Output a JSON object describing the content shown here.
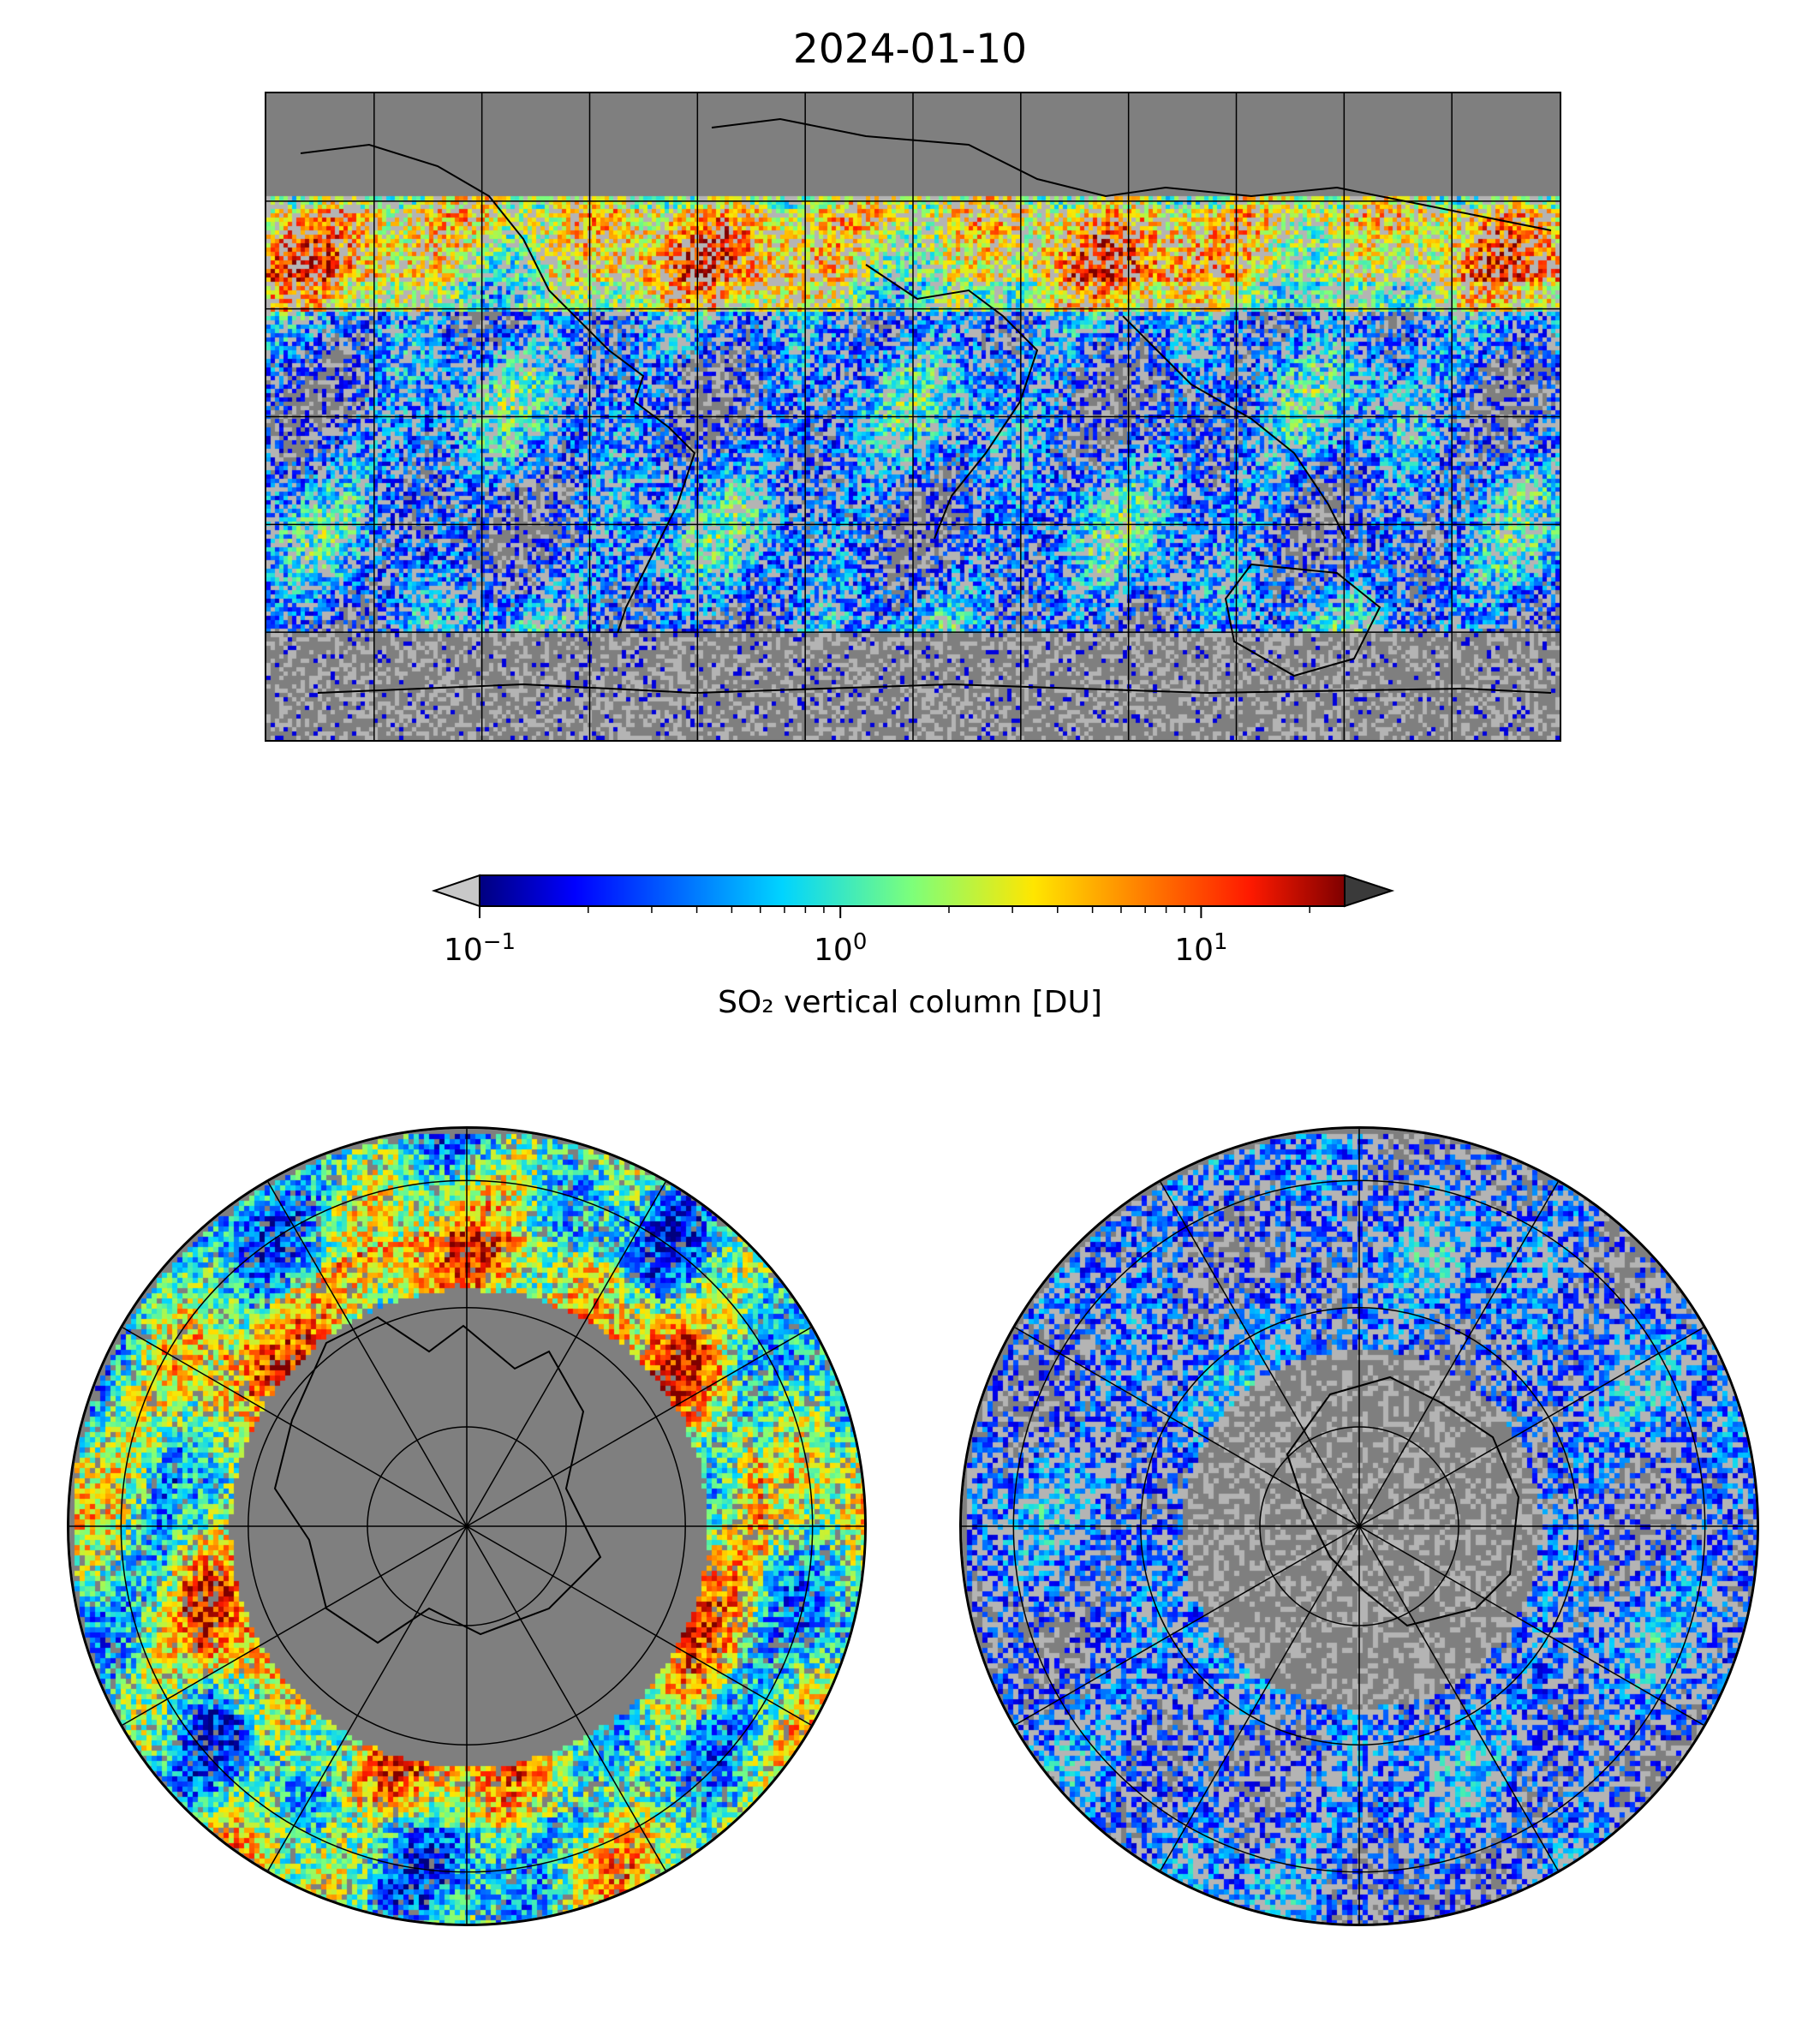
{
  "title": "2024-01-10",
  "colorbar": {
    "scale": "log",
    "range": [
      0.1,
      25
    ],
    "extend": "both",
    "under_color": "#c8c8c8",
    "over_color": "#3a3a3a",
    "colormap": "jet",
    "ticks": [
      {
        "value": 0.1,
        "base": "10",
        "exp": "−1"
      },
      {
        "value": 1,
        "base": "10",
        "exp": "0"
      },
      {
        "value": 10,
        "base": "10",
        "exp": "1"
      }
    ],
    "label": "SO₂ vertical column [DU]"
  },
  "maps": {
    "global": {
      "projection": "plate carrée",
      "gridlines": true,
      "coastlines": true
    },
    "north": {
      "projection": "north polar stereographic",
      "gridlines": true,
      "coastlines": true
    },
    "south": {
      "projection": "south polar stereographic",
      "gridlines": true,
      "coastlines": true
    }
  },
  "colors": {
    "background": "#7f7f7f",
    "no_data": "#b4b4b4"
  }
}
